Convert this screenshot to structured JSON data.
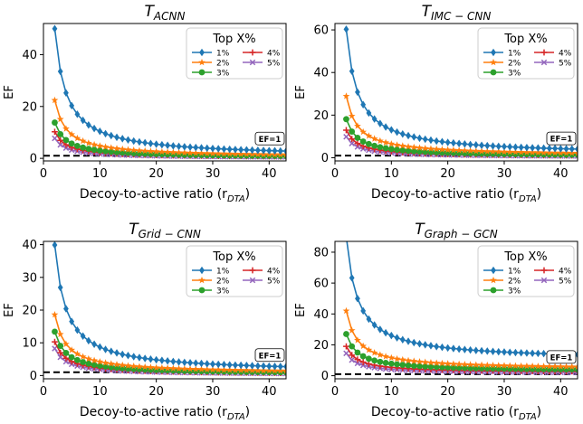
{
  "figure": {
    "ef_line_label": "EF=1",
    "legend_title": "Top X%"
  },
  "series_styles": [
    {
      "name": "1%",
      "color": "#1f77b4",
      "marker": "diamond"
    },
    {
      "name": "2%",
      "color": "#ff7f0e",
      "marker": "star"
    },
    {
      "name": "3%",
      "color": "#2ca02c",
      "marker": "circle"
    },
    {
      "name": "4%",
      "color": "#d62728",
      "marker": "plus"
    },
    {
      "name": "5%",
      "color": "#9467bd",
      "marker": "x"
    }
  ],
  "chart_data": [
    {
      "type": "line",
      "title": "T_ACNN",
      "title_base": "T",
      "title_sub": "ACNN",
      "xlabel": "Decoy-to-active ratio (r",
      "xlabel_sub": "DTA",
      "xlabel_close": ")",
      "ylabel": "EF",
      "xlim": [
        0,
        43
      ],
      "ylim": [
        -1,
        52
      ],
      "xticks": [
        0,
        10,
        20,
        30,
        40
      ],
      "yticks": [
        0,
        20,
        40
      ],
      "reference_line": 1,
      "series": [
        {
          "name": "1%",
          "A": 99,
          "B": 0.5
        },
        {
          "name": "2%",
          "A": 44,
          "B": 0.4
        },
        {
          "name": "3%",
          "A": 27,
          "B": 0.3
        },
        {
          "name": "4%",
          "A": 20,
          "B": 0.25
        },
        {
          "name": "5%",
          "A": 15,
          "B": 0.2
        }
      ]
    },
    {
      "type": "line",
      "title": "T_IMC-CNN",
      "title_base": "T",
      "title_sub": "IMC − CNN",
      "xlabel": "Decoy-to-active ratio (r",
      "xlabel_sub": "DTA",
      "xlabel_close": ")",
      "ylabel": "EF",
      "xlim": [
        0,
        43
      ],
      "ylim": [
        -1.5,
        63
      ],
      "xticks": [
        0,
        10,
        20,
        30,
        40
      ],
      "yticks": [
        0,
        20,
        40,
        60
      ],
      "reference_line": 1,
      "series": [
        {
          "name": "1%",
          "A": 118,
          "B": 1.3
        },
        {
          "name": "2%",
          "A": 56,
          "B": 0.9
        },
        {
          "name": "3%",
          "A": 35,
          "B": 0.6
        },
        {
          "name": "4%",
          "A": 25,
          "B": 0.45
        },
        {
          "name": "5%",
          "A": 19,
          "B": 0.35
        }
      ]
    },
    {
      "type": "line",
      "title": "T_Grid-CNN",
      "title_base": "T",
      "title_sub": "Grid − CNN",
      "xlabel": "Decoy-to-active ratio (r",
      "xlabel_sub": "DTA",
      "xlabel_close": ")",
      "ylabel": "EF",
      "xlim": [
        0,
        43
      ],
      "ylim": [
        -1,
        41
      ],
      "xticks": [
        0,
        10,
        20,
        30,
        40
      ],
      "yticks": [
        0,
        10,
        20,
        30,
        40
      ],
      "reference_line": 1,
      "series": [
        {
          "name": "1%",
          "A": 78,
          "B": 0.9
        },
        {
          "name": "2%",
          "A": 36,
          "B": 0.6
        },
        {
          "name": "3%",
          "A": 26,
          "B": 0.4
        },
        {
          "name": "4%",
          "A": 20,
          "B": 0.3
        },
        {
          "name": "5%",
          "A": 16,
          "B": 0.25
        }
      ]
    },
    {
      "type": "line",
      "title": "T_Graph-GCN",
      "title_base": "T",
      "title_sub": "Graph − GCN",
      "xlabel": "Decoy-to-active ratio (r",
      "xlabel_sub": "DTA",
      "xlabel_close": ")",
      "ylabel": "EF",
      "xlim": [
        0,
        43
      ],
      "ylim": [
        -2,
        87
      ],
      "xticks": [
        0,
        10,
        20,
        30,
        40
      ],
      "yticks": [
        0,
        20,
        40,
        60,
        80
      ],
      "reference_line": 1,
      "series": [
        {
          "name": "1%",
          "A": 160,
          "B": 10
        },
        {
          "name": "2%",
          "A": 76,
          "B": 4
        },
        {
          "name": "3%",
          "A": 48,
          "B": 3
        },
        {
          "name": "4%",
          "A": 34,
          "B": 2
        },
        {
          "name": "5%",
          "A": 26,
          "B": 1.5
        }
      ]
    }
  ]
}
